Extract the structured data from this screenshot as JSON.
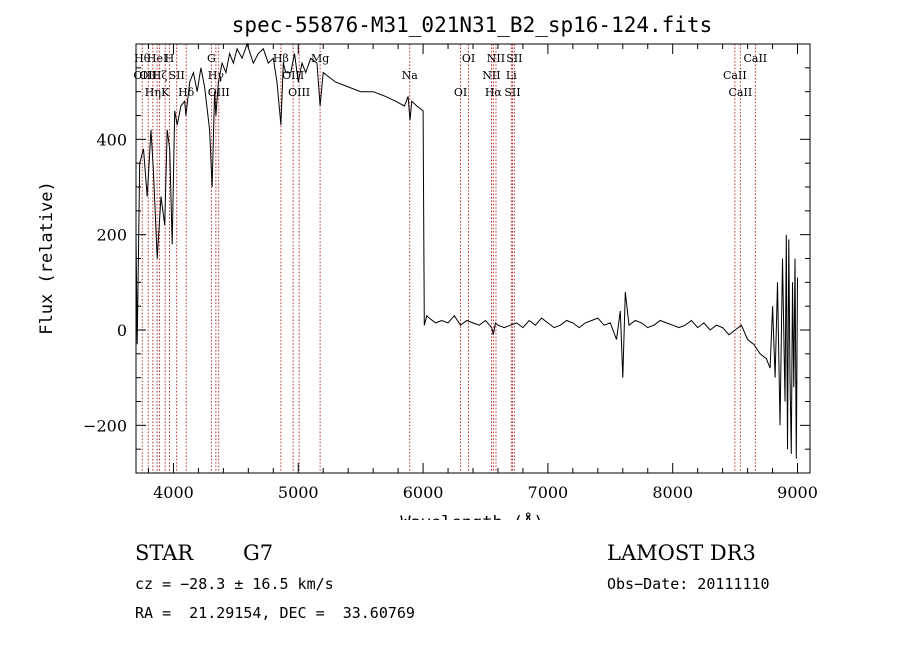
{
  "chart_data": {
    "type": "line",
    "title": "spec-55876-M31_021N31_B2_sp16-124.fits",
    "xlabel": "Wavelength (Å)",
    "ylabel": "Flux (relative)",
    "xlim": [
      3700,
      9100
    ],
    "ylim": [
      -300,
      600
    ],
    "xticks": [
      4000,
      5000,
      6000,
      7000,
      8000,
      9000
    ],
    "yticks": [
      -200,
      0,
      200,
      400
    ],
    "grid": false,
    "series": [
      {
        "x": [
          3700,
          3710,
          3730,
          3760,
          3790,
          3820,
          3840,
          3870,
          3900,
          3930,
          3950,
          3970,
          3990,
          4010,
          4030,
          4060,
          4090,
          4100,
          4130,
          4160,
          4190,
          4220,
          4250,
          4290,
          4310,
          4330,
          4340,
          4360,
          4390,
          4420,
          4450,
          4480,
          4510,
          4550,
          4590,
          4640,
          4680,
          4720,
          4760,
          4800,
          4830,
          4861,
          4880,
          4900,
          4940,
          4970,
          5000,
          5030,
          5060,
          5100,
          5150,
          5175,
          5200,
          5300,
          5400,
          5500,
          5600,
          5700,
          5780,
          5850,
          5880,
          5895,
          5910,
          5950,
          6000,
          6010,
          6020,
          6030,
          6050,
          6100,
          6150,
          6200,
          6250,
          6300,
          6350,
          6400,
          6450,
          6500,
          6550,
          6563,
          6580,
          6600,
          6650,
          6700,
          6750,
          6800,
          6850,
          6900,
          6950,
          7000,
          7050,
          7100,
          7150,
          7200,
          7250,
          7300,
          7350,
          7400,
          7450,
          7500,
          7550,
          7580,
          7600,
          7620,
          7650,
          7700,
          7750,
          7800,
          7850,
          7900,
          7950,
          8000,
          8050,
          8100,
          8150,
          8200,
          8250,
          8300,
          8350,
          8400,
          8450,
          8500,
          8550,
          8600,
          8650,
          8700,
          8750,
          8780,
          8800,
          8820,
          8840,
          8860,
          8880,
          8900,
          8910,
          8920,
          8930,
          8940,
          8950,
          8960,
          8970,
          8980,
          8990,
          9000
        ],
        "y": [
          200,
          -30,
          350,
          380,
          280,
          420,
          330,
          150,
          280,
          220,
          420,
          380,
          180,
          460,
          430,
          470,
          480,
          450,
          520,
          540,
          500,
          550,
          510,
          420,
          300,
          500,
          450,
          520,
          560,
          540,
          580,
          560,
          590,
          570,
          600,
          560,
          580,
          590,
          560,
          570,
          520,
          430,
          560,
          540,
          540,
          580,
          520,
          560,
          540,
          570,
          560,
          470,
          540,
          520,
          510,
          500,
          500,
          490,
          480,
          470,
          490,
          440,
          480,
          470,
          460,
          10,
          20,
          30,
          25,
          15,
          20,
          15,
          30,
          10,
          20,
          15,
          10,
          20,
          5,
          -10,
          15,
          10,
          5,
          10,
          15,
          5,
          20,
          10,
          25,
          15,
          5,
          10,
          20,
          15,
          5,
          15,
          20,
          25,
          10,
          15,
          -20,
          40,
          -100,
          80,
          10,
          20,
          15,
          5,
          10,
          20,
          15,
          10,
          5,
          10,
          20,
          5,
          15,
          0,
          10,
          5,
          -10,
          0,
          10,
          -20,
          -30,
          -50,
          -60,
          -80,
          50,
          -100,
          100,
          -200,
          150,
          -150,
          200,
          -250,
          190,
          -100,
          -260,
          100,
          -120,
          150,
          -270,
          110
        ]
      }
    ],
    "lines": [
      {
        "x": 3750,
        "labels": [
          "Hθ",
          "OII"
        ]
      },
      {
        "x": 3798,
        "labels": [
          "OII"
        ]
      },
      {
        "x": 3835,
        "labels": [
          "Hη"
        ]
      },
      {
        "x": 3869,
        "labels": [
          "HeI"
        ]
      },
      {
        "x": 3889,
        "labels": [
          "Hζ"
        ]
      },
      {
        "x": 3934,
        "labels": [
          "K"
        ]
      },
      {
        "x": 3968,
        "labels": [
          "H"
        ]
      },
      {
        "x": 4026,
        "labels": [
          "SII"
        ]
      },
      {
        "x": 4102,
        "labels": [
          "Hδ"
        ]
      },
      {
        "x": 4304,
        "labels": [
          "G"
        ]
      },
      {
        "x": 4340,
        "labels": [
          "Hγ"
        ]
      },
      {
        "x": 4363,
        "labels": [
          "OIII"
        ]
      },
      {
        "x": 4861,
        "labels": [
          "Hβ"
        ]
      },
      {
        "x": 4959,
        "labels": [
          "OIII"
        ]
      },
      {
        "x": 5007,
        "labels": [
          "OIII"
        ]
      },
      {
        "x": 5175,
        "labels": [
          "Mg"
        ]
      },
      {
        "x": 5893,
        "labels": [
          "Na"
        ]
      },
      {
        "x": 6300,
        "labels": [
          "OI"
        ]
      },
      {
        "x": 6364,
        "labels": [
          "OI"
        ]
      },
      {
        "x": 6548,
        "labels": [
          "NII"
        ]
      },
      {
        "x": 6563,
        "labels": [
          "Hα"
        ]
      },
      {
        "x": 6584,
        "labels": [
          "NII"
        ]
      },
      {
        "x": 6707,
        "labels": [
          "Li"
        ]
      },
      {
        "x": 6716,
        "labels": [
          "SII"
        ]
      },
      {
        "x": 6731,
        "labels": [
          "SII"
        ]
      },
      {
        "x": 8498,
        "labels": [
          "CaII"
        ]
      },
      {
        "x": 8542,
        "labels": [
          "CaII"
        ]
      },
      {
        "x": 8662,
        "labels": [
          "CaII"
        ]
      }
    ]
  },
  "info": {
    "class": "STAR",
    "subclass": "G7",
    "survey": "LAMOST DR3",
    "cz": "cz = −28.3 ± 16.5 km/s",
    "obs_date": "Obs−Date: 20111110",
    "coords": "RA =  21.29154, DEC =  33.60769"
  },
  "colors": {
    "spectrum": "#000000",
    "line_markers": "#b22222",
    "axes": "#000000"
  }
}
